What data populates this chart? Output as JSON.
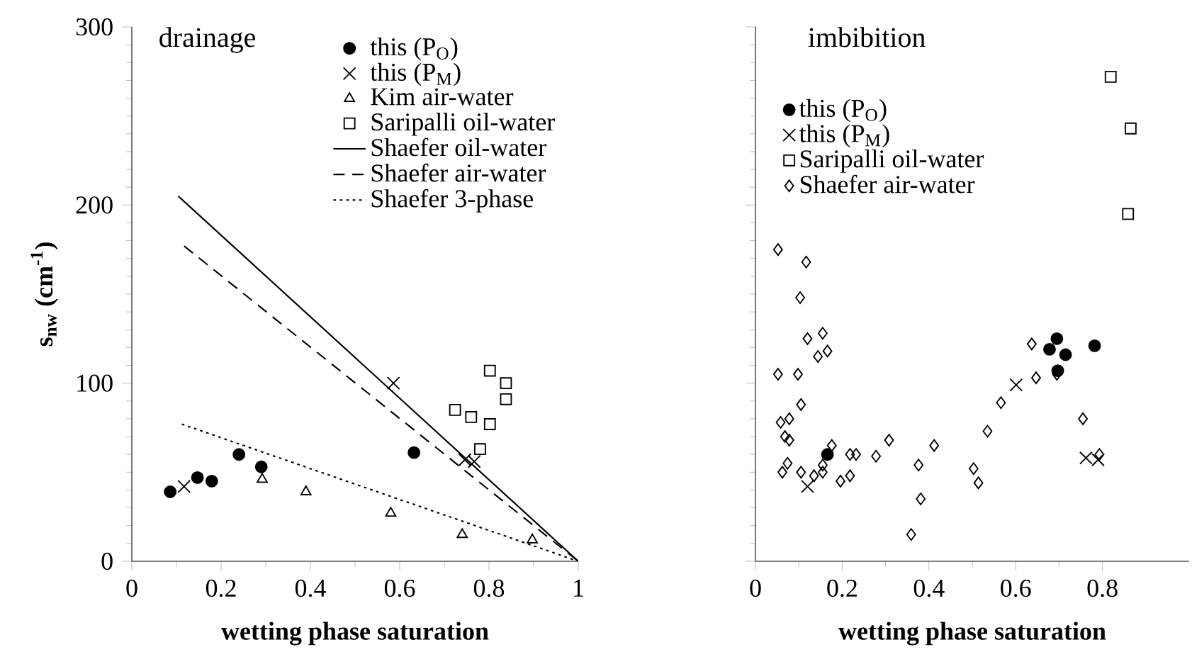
{
  "chart_data": [
    {
      "type": "scatter",
      "title": "drainage",
      "xlabel": "wetting phase saturation",
      "ylabel": "s$_{nw}$ (cm$^{-1}$)",
      "xlim": [
        0,
        1
      ],
      "ylim": [
        0,
        300
      ],
      "xticks": [
        0,
        0.2,
        0.4,
        0.6,
        0.8,
        1
      ],
      "yticks": [
        0,
        100,
        200,
        300
      ],
      "legend": "top right",
      "series": [
        {
          "name": "this (P$_{O}$)",
          "color": "#000000",
          "marker": "circle",
          "x": [
            0.086,
            0.147,
            0.179,
            0.24,
            0.29,
            0.632
          ],
          "values": [
            39,
            47,
            45,
            60,
            53,
            61
          ]
        },
        {
          "name": "this (P$_{M}$)",
          "color": "#000000",
          "marker": "cross",
          "x": [
            0.117,
            0.586,
            0.746,
            0.767
          ],
          "values": [
            42,
            100,
            57,
            56
          ]
        },
        {
          "name": "Kim air-water",
          "color": "#000000",
          "marker": "triangle",
          "x": [
            0.292,
            0.39,
            0.58,
            0.74,
            0.897
          ],
          "values": [
            46,
            39,
            27,
            15,
            12
          ]
        },
        {
          "name": "Saripalli oil-water",
          "color": "#000000",
          "marker": "square",
          "x": [
            0.802,
            0.838,
            0.838,
            0.724,
            0.76,
            0.802,
            0.78
          ],
          "values": [
            107,
            100,
            91,
            85,
            81,
            77,
            63
          ]
        },
        {
          "name": "Shaefer oil-water",
          "type": "line",
          "color": "#000000",
          "marker": "none",
          "line_style": "solid",
          "x": [
            0.104,
            1
          ],
          "values": [
            205,
            0
          ]
        },
        {
          "name": "Shaefer air-water",
          "type": "line",
          "color": "#000000",
          "marker": "none",
          "line_style": "dashed",
          "x": [
            0.117,
            1
          ],
          "values": [
            177,
            0
          ]
        },
        {
          "name": "Shaefer 3-phase",
          "type": "line",
          "color": "#000000",
          "marker": "none",
          "line_style": "dotted",
          "x": [
            0.112,
            1
          ],
          "values": [
            77,
            0
          ]
        }
      ]
    },
    {
      "type": "scatter",
      "title": "imbibition",
      "xlabel": "wetting phase saturation",
      "xlim": [
        0,
        1
      ],
      "ylim": [
        0,
        300
      ],
      "xticks": [
        0,
        0.2,
        0.4,
        0.6,
        0.8
      ],
      "yticks": [
        0,
        100,
        200,
        300
      ],
      "tick_labels": "x",
      "legend": "top left",
      "series": [
        {
          "name": "this (P$_{O}$)",
          "color": "#000000",
          "marker": "circle",
          "x": [
            0.166,
            0.678,
            0.695,
            0.715,
            0.697,
            0.782
          ],
          "values": [
            60,
            119,
            125,
            116,
            107,
            121
          ]
        },
        {
          "name": "this (P$_{M}$)",
          "color": "#000000",
          "marker": "cross",
          "x": [
            0.12,
            0.601,
            0.762,
            0.79
          ],
          "values": [
            42,
            99,
            58,
            57
          ]
        },
        {
          "name": "Saripalli oil-water",
          "color": "#000000",
          "marker": "square",
          "x": [
            0.819,
            0.865,
            0.859
          ],
          "values": [
            272,
            243,
            195
          ]
        },
        {
          "name": "Shaefer air-water",
          "color": "#000000",
          "marker": "diamond",
          "x": [
            0.052,
            0.117,
            0.103,
            0.12,
            0.155,
            0.144,
            0.166,
            0.052,
            0.098,
            0.105,
            0.058,
            0.078,
            0.068,
            0.078,
            0.176,
            0.074,
            0.062,
            0.105,
            0.135,
            0.155,
            0.155,
            0.196,
            0.218,
            0.218,
            0.232,
            0.278,
            0.308,
            0.376,
            0.381,
            0.359,
            0.412,
            0.503,
            0.514,
            0.535,
            0.566,
            0.637,
            0.647,
            0.695,
            0.755,
            0.793
          ],
          "values": [
            175,
            168,
            148,
            125,
            128,
            115,
            118,
            105,
            105,
            88,
            78,
            80,
            70,
            68,
            65,
            55,
            50,
            50,
            48,
            50,
            54,
            45,
            48,
            60,
            60,
            59,
            68,
            54,
            35,
            15,
            65,
            52,
            44,
            73,
            89,
            122,
            103,
            105,
            80,
            60
          ]
        }
      ]
    }
  ]
}
